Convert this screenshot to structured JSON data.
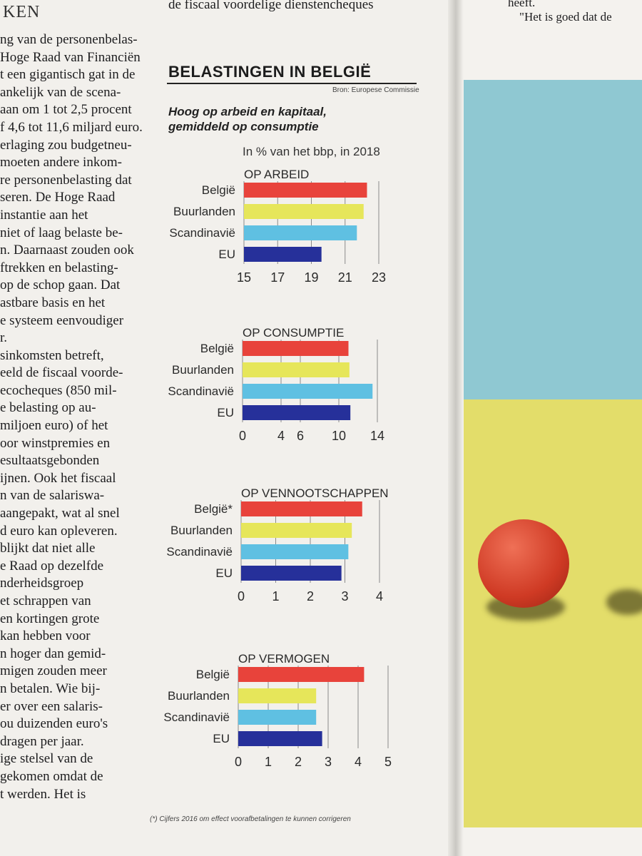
{
  "article": {
    "section_head": "KEN",
    "top_fragment": "de fiscaal voordelige dienstencheques",
    "left_column_lines": [
      "ng van de personenbelas-",
      "Hoge Raad van Financiën",
      "t een gigantisch gat in de",
      "ankelijk van de scena-",
      "aan om 1 tot 2,5 procent",
      "f 4,6 tot 11,6 miljard euro.",
      "erlaging zou budgetneu-",
      "moeten andere inkom-",
      "re personenbelasting dat",
      "seren. De Hoge Raad",
      "instantie aan het",
      "niet of laag belaste be-",
      "n. Daarnaast zouden ook",
      "ftrekken en belasting-",
      " op de schop gaan. Dat",
      "astbare basis en het",
      "e systeem eenvoudiger",
      "r.",
      "sinkomsten betreft,",
      "eeld de fiscaal voorde-",
      "ecocheques (850 mil-",
      "e belasting op au-",
      "miljoen euro) of het",
      "oor winstpremies en",
      "esultaatsgebonden",
      "ijnen. Ook het fiscaal",
      "n van de salariswa-",
      "aangepakt, wat al snel",
      "d euro kan opleveren.",
      "blijkt dat niet alle",
      "e Raad op dezelfde",
      "nderheidsgroep",
      "et schrappen van",
      " en kortingen grote",
      " kan hebben voor",
      "n hoger dan gemid-",
      "migen zouden meer",
      "n betalen. Wie bij-",
      "er over een salaris-",
      "ou duizenden euro's",
      "dragen per jaar.",
      "ige stelsel van de",
      " gekomen omdat de",
      "t werden. Het is"
    ],
    "right_page_fragment_1": "heeft.",
    "right_page_fragment_2": "\"Het is goed dat de"
  },
  "graphic": {
    "title": "BELASTINGEN IN BELGIË",
    "source": "Bron: Europese Commissie",
    "subtitle_line1": "Hoog op arbeid en kapitaal,",
    "subtitle_line2": "gemiddeld op consumptie",
    "unit": "In % van het bbp, in 2018",
    "footnote": "(*) Cijfers 2016 om effect voorafbetalingen te kunnen corrigeren"
  },
  "chart_data": [
    {
      "type": "bar",
      "orientation": "horizontal",
      "title": "OP ARBEID",
      "categories": [
        "België",
        "Buurlanden",
        "Scandinavië",
        "EU"
      ],
      "values": [
        22.3,
        22.1,
        21.7,
        19.6
      ],
      "xlim": [
        15,
        23
      ],
      "ticks": [
        "15",
        "17",
        "19",
        "21",
        "23"
      ],
      "colors": [
        "#e8433b",
        "#e6e65a",
        "#5fc0e2",
        "#26309a"
      ],
      "grid": true
    },
    {
      "type": "bar",
      "orientation": "horizontal",
      "title": "OP CONSUMPTIE",
      "categories": [
        "België",
        "Buurlanden",
        "Scandinavië",
        "EU"
      ],
      "values": [
        11.0,
        11.1,
        13.5,
        11.2
      ],
      "xlim": [
        0,
        14
      ],
      "ticks": [
        "0",
        "4",
        "6",
        "10",
        "14"
      ],
      "colors": [
        "#e8433b",
        "#e6e65a",
        "#5fc0e2",
        "#26309a"
      ],
      "grid": true
    },
    {
      "type": "bar",
      "orientation": "horizontal",
      "title": "OP VENNOOTSCHAPPEN",
      "categories": [
        "België*",
        "Buurlanden",
        "Scandinavië",
        "EU"
      ],
      "values": [
        3.5,
        3.2,
        3.1,
        2.9
      ],
      "xlim": [
        0,
        4
      ],
      "ticks": [
        "0",
        "1",
        "2",
        "3",
        "4"
      ],
      "colors": [
        "#e8433b",
        "#e6e65a",
        "#5fc0e2",
        "#26309a"
      ],
      "grid": true
    },
    {
      "type": "bar",
      "orientation": "horizontal",
      "title": "OP VERMOGEN",
      "categories": [
        "België",
        "Buurlanden",
        "Scandinavië",
        "EU"
      ],
      "values": [
        4.2,
        2.6,
        2.6,
        2.8
      ],
      "xlim": [
        0,
        5
      ],
      "ticks": [
        "0",
        "1",
        "2",
        "3",
        "4",
        "5"
      ],
      "colors": [
        "#e8433b",
        "#e6e65a",
        "#5fc0e2",
        "#26309a"
      ],
      "grid": true
    }
  ]
}
